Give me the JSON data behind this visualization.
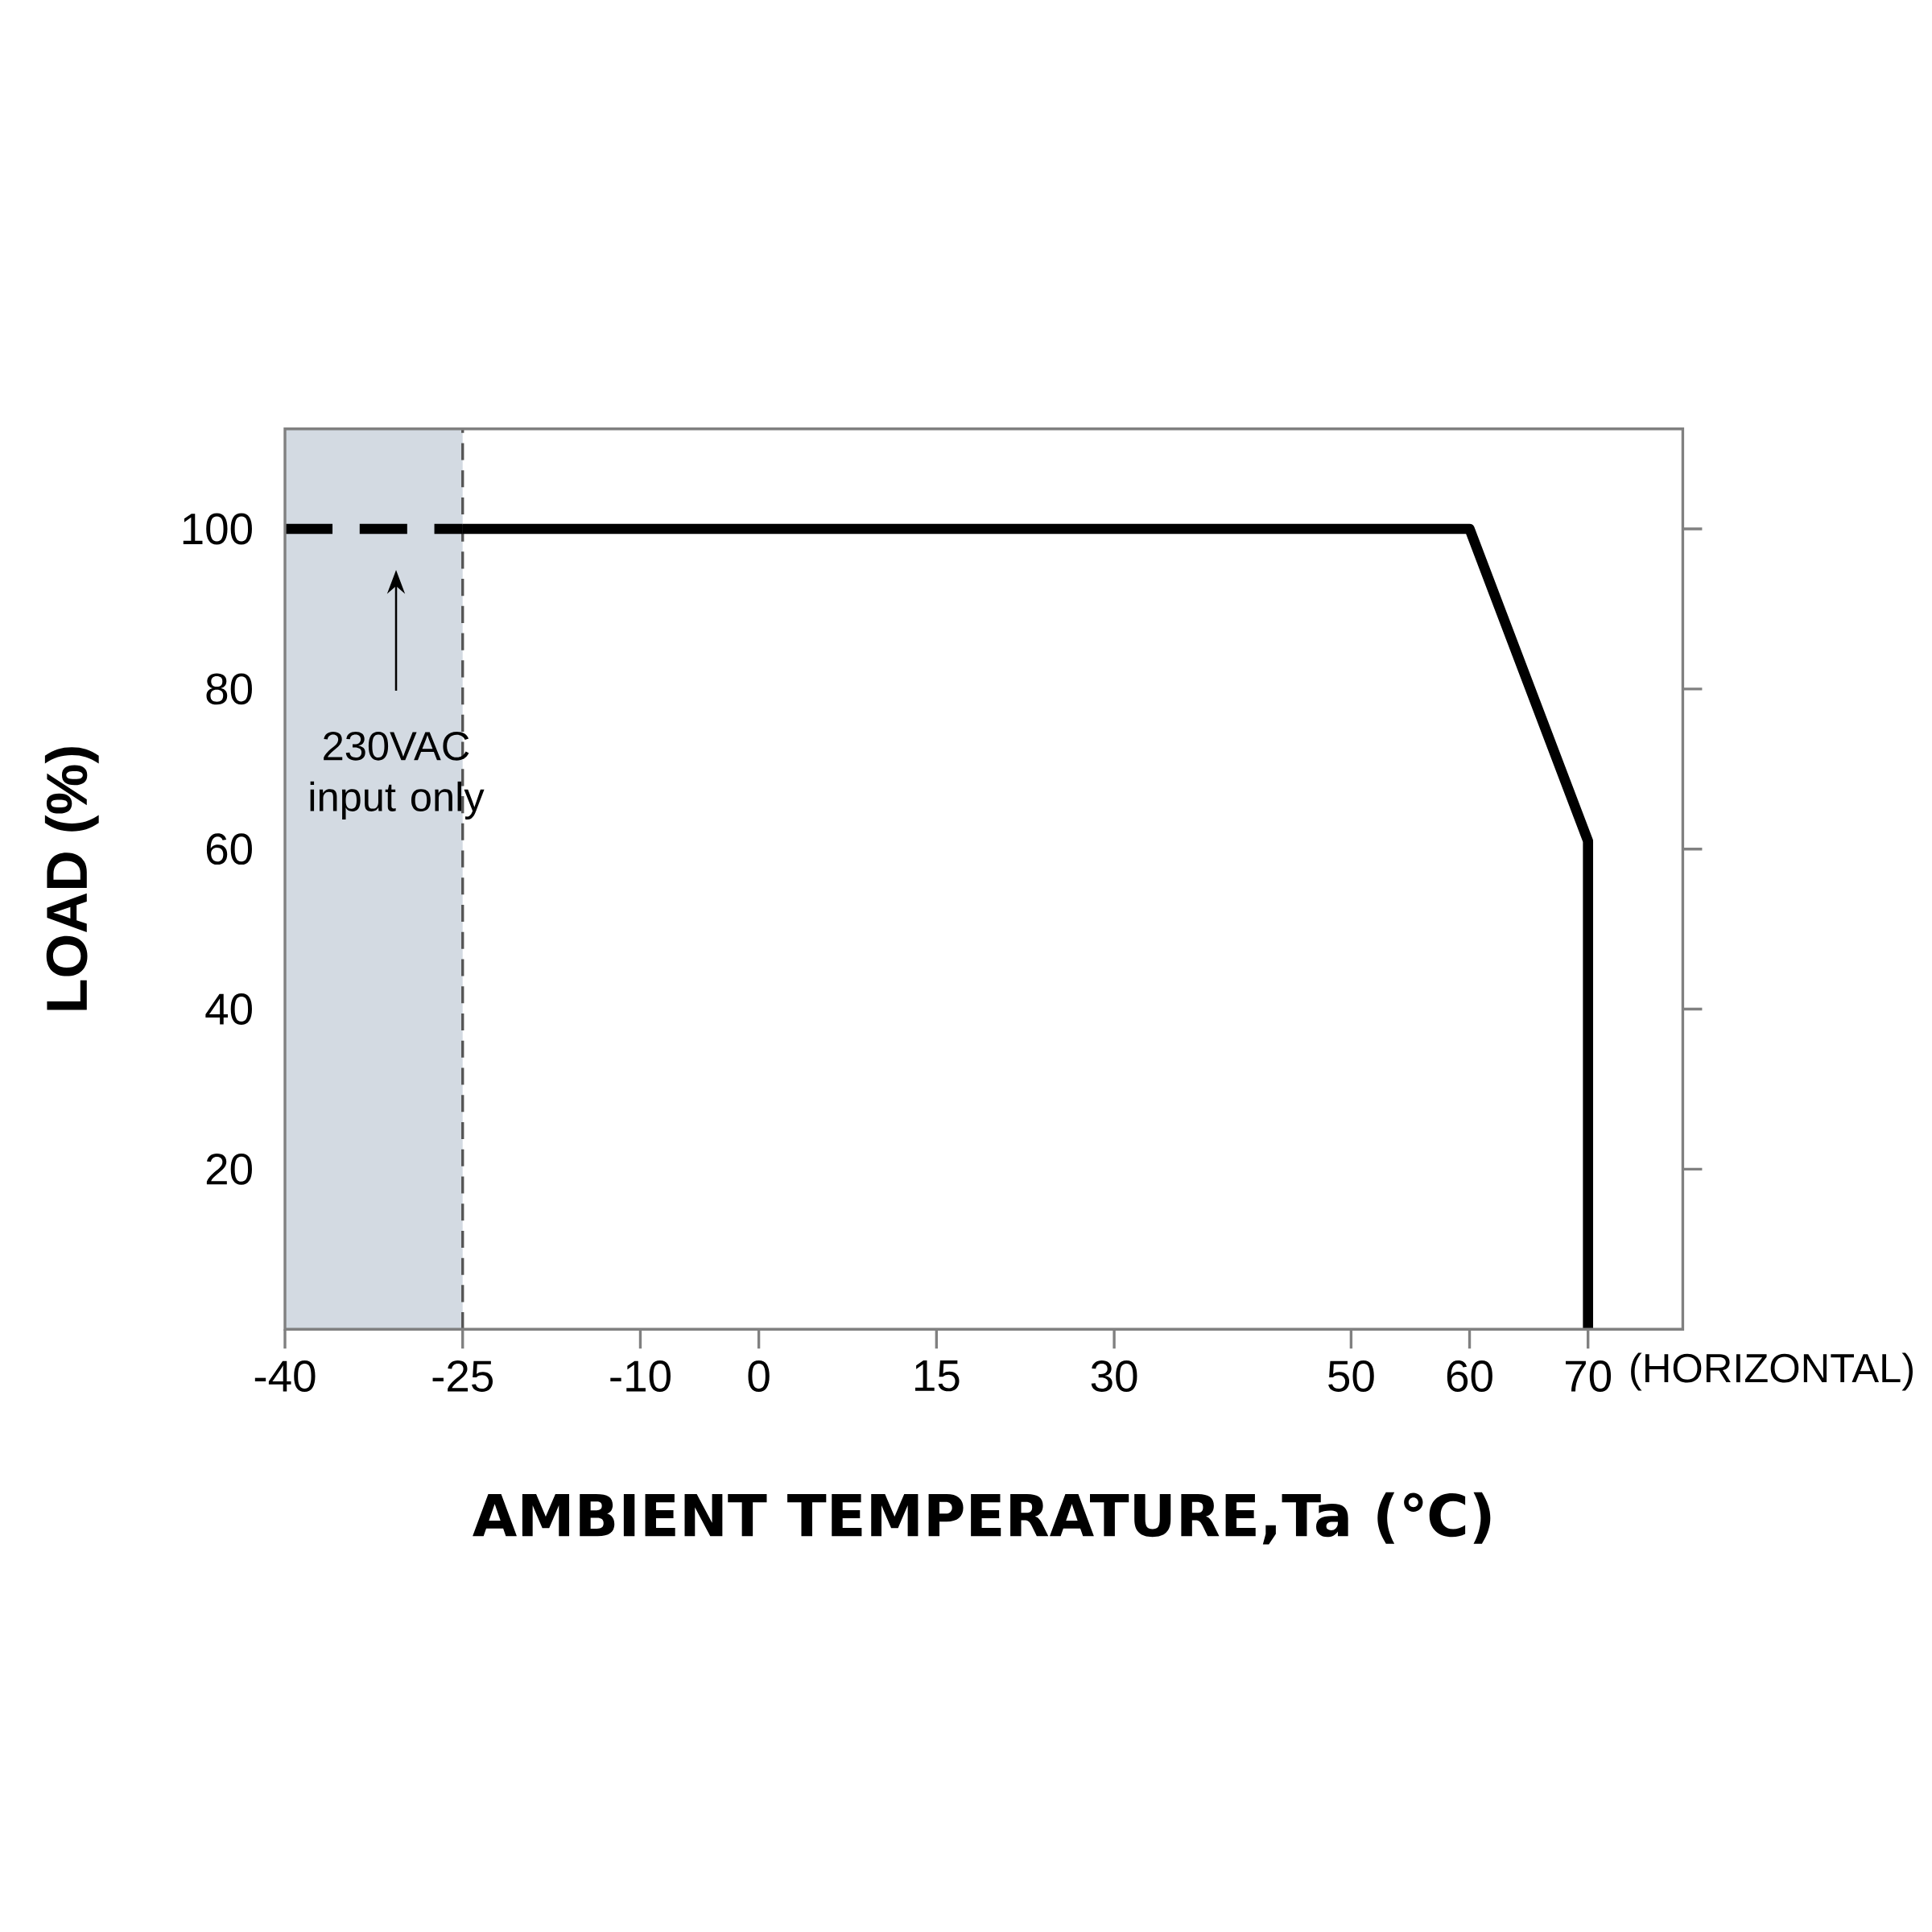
{
  "chart_data": {
    "type": "line",
    "xlabel": "AMBIENT TEMPERATURE,Ta (℃)",
    "ylabel": "LOAD (%)",
    "xlim": [
      -40,
      78
    ],
    "ylim": [
      0,
      112.5
    ],
    "xticks": [
      -40,
      -25,
      -10,
      0,
      15,
      30,
      50,
      60,
      70
    ],
    "yticks": [
      20,
      40,
      60,
      80,
      100
    ],
    "series": [
      {
        "color": "#000000",
        "line_style": "dashed",
        "x": [
          -40,
          -25
        ],
        "values": [
          100,
          100
        ]
      },
      {
        "color": "#000000",
        "line_style": "solid",
        "x": [
          -25,
          60,
          70,
          70
        ],
        "values": [
          100,
          100,
          61,
          0
        ]
      }
    ],
    "bands": [
      {
        "axis": "x",
        "from": -40,
        "to": -25,
        "color": "#d3dae2"
      }
    ],
    "ref_lines": [
      {
        "axis": "x",
        "value": -25,
        "color": "#555555",
        "line_style": "dashed"
      }
    ],
    "annotations": [
      "230VAC input only",
      "(HORIZONTAL)"
    ]
  }
}
